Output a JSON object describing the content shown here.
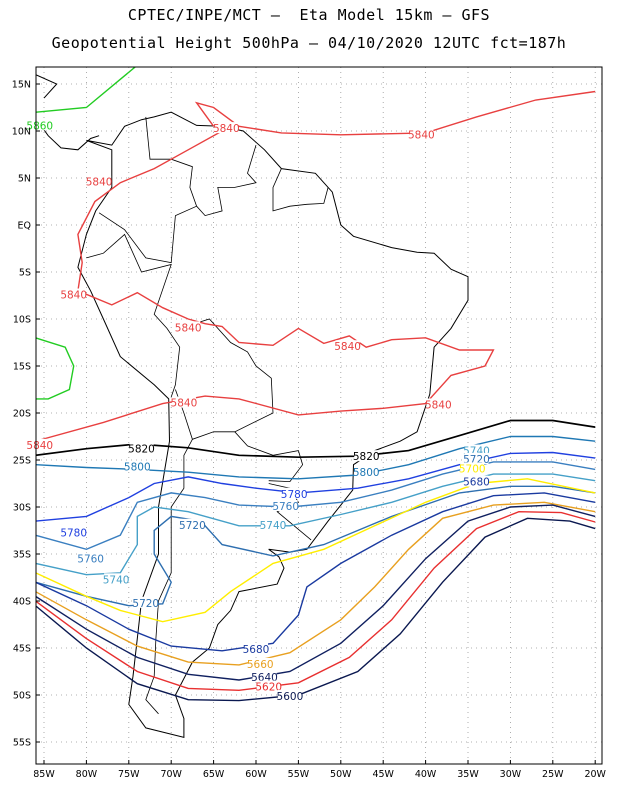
{
  "title_line1": "CPTEC/INPE/MCT –  Eta Model 15km – GFS",
  "title_line2": "Geopotential Height 500hPa – 04/10/2020 12UTC fct=187h",
  "lat_labels": [
    "15N",
    "10N",
    "5N",
    "EQ",
    "5S",
    "10S",
    "15S",
    "20S",
    "25S",
    "30S",
    "35S",
    "40S",
    "45S",
    "50S",
    "55S"
  ],
  "lon_labels": [
    "85W",
    "80W",
    "75W",
    "70W",
    "65W",
    "60W",
    "55W",
    "50W",
    "45W",
    "40W",
    "35W",
    "30W",
    "25W",
    "20W"
  ],
  "colors": {
    "5840": "#e84040",
    "5820": "#000000",
    "5800": "#1f78b4",
    "5780": "#2040e0",
    "5760": "#3a7fc0",
    "5740": "#45a0c8",
    "5720": "#2e6fb0",
    "5700": "#ffee00",
    "5680": "#1a3aa0",
    "5660": "#e8a020",
    "5640": "#102060",
    "5620": "#e83030",
    "5600": "#0a1850",
    "5860": "#22cc22",
    "coast": "#000000"
  },
  "contour_labels": [
    {
      "text": "5840",
      "key": "5840",
      "lon": -63.5,
      "lat": 10.2
    },
    {
      "text": "5840",
      "key": "5840",
      "lon": -40.5,
      "lat": 9.5
    },
    {
      "text": "5840",
      "key": "5840",
      "lon": -78.5,
      "lat": 4.5
    },
    {
      "text": "5840",
      "key": "5840",
      "lon": -81.5,
      "lat": -7.5
    },
    {
      "text": "5840",
      "key": "5840",
      "lon": -68.0,
      "lat": -11.0
    },
    {
      "text": "5840",
      "key": "5840",
      "lon": -49.2,
      "lat": -13.0
    },
    {
      "text": "5840",
      "key": "5840",
      "lon": -68.5,
      "lat": -19.0
    },
    {
      "text": "5840",
      "key": "5840",
      "lon": -85.5,
      "lat": -23.5
    },
    {
      "text": "5840",
      "key": "5840",
      "lon": -38.5,
      "lat": -19.2
    },
    {
      "text": "5860",
      "key": "5860",
      "lon": -85.5,
      "lat": 10.5
    },
    {
      "text": "5820",
      "key": "5820",
      "lon": -73.5,
      "lat": -23.9
    },
    {
      "text": "5820",
      "key": "5820",
      "lon": -47.0,
      "lat": -24.7
    },
    {
      "text": "5800",
      "key": "5800",
      "lon": -74.0,
      "lat": -25.8
    },
    {
      "text": "5800",
      "key": "5800",
      "lon": -47.0,
      "lat": -26.4
    },
    {
      "text": "5780",
      "key": "5780",
      "lon": -81.5,
      "lat": -32.8
    },
    {
      "text": "5780",
      "key": "5780",
      "lon": -55.5,
      "lat": -28.7
    },
    {
      "text": "5760",
      "key": "5760",
      "lon": -79.5,
      "lat": -35.6
    },
    {
      "text": "5760",
      "key": "5760",
      "lon": -56.5,
      "lat": -30.0
    },
    {
      "text": "5740",
      "key": "5740",
      "lon": -76.5,
      "lat": -37.8
    },
    {
      "text": "5740",
      "key": "5740",
      "lon": -58.0,
      "lat": -32.0
    },
    {
      "text": "5740",
      "key": "5740",
      "lon": -34.0,
      "lat": -24.1
    },
    {
      "text": "5720",
      "key": "5720",
      "lon": -73.0,
      "lat": -40.3
    },
    {
      "text": "5720",
      "key": "5720",
      "lon": -67.5,
      "lat": -32.0
    },
    {
      "text": "5720",
      "key": "5720",
      "lon": -34.0,
      "lat": -25.0
    },
    {
      "text": "5700",
      "key": "5700",
      "lon": -34.5,
      "lat": -26.0
    },
    {
      "text": "5680",
      "key": "5680",
      "lon": -34.0,
      "lat": -27.4
    },
    {
      "text": "5680",
      "key": "5680",
      "lon": -60.0,
      "lat": -45.2
    },
    {
      "text": "5660",
      "key": "5660",
      "lon": -59.5,
      "lat": -46.8
    },
    {
      "text": "5640",
      "key": "5640",
      "lon": -59.0,
      "lat": -48.2
    },
    {
      "text": "5620",
      "key": "5620",
      "lon": -58.5,
      "lat": -49.2
    },
    {
      "text": "5600",
      "key": "5600",
      "lon": -56.0,
      "lat": -50.2
    }
  ]
}
